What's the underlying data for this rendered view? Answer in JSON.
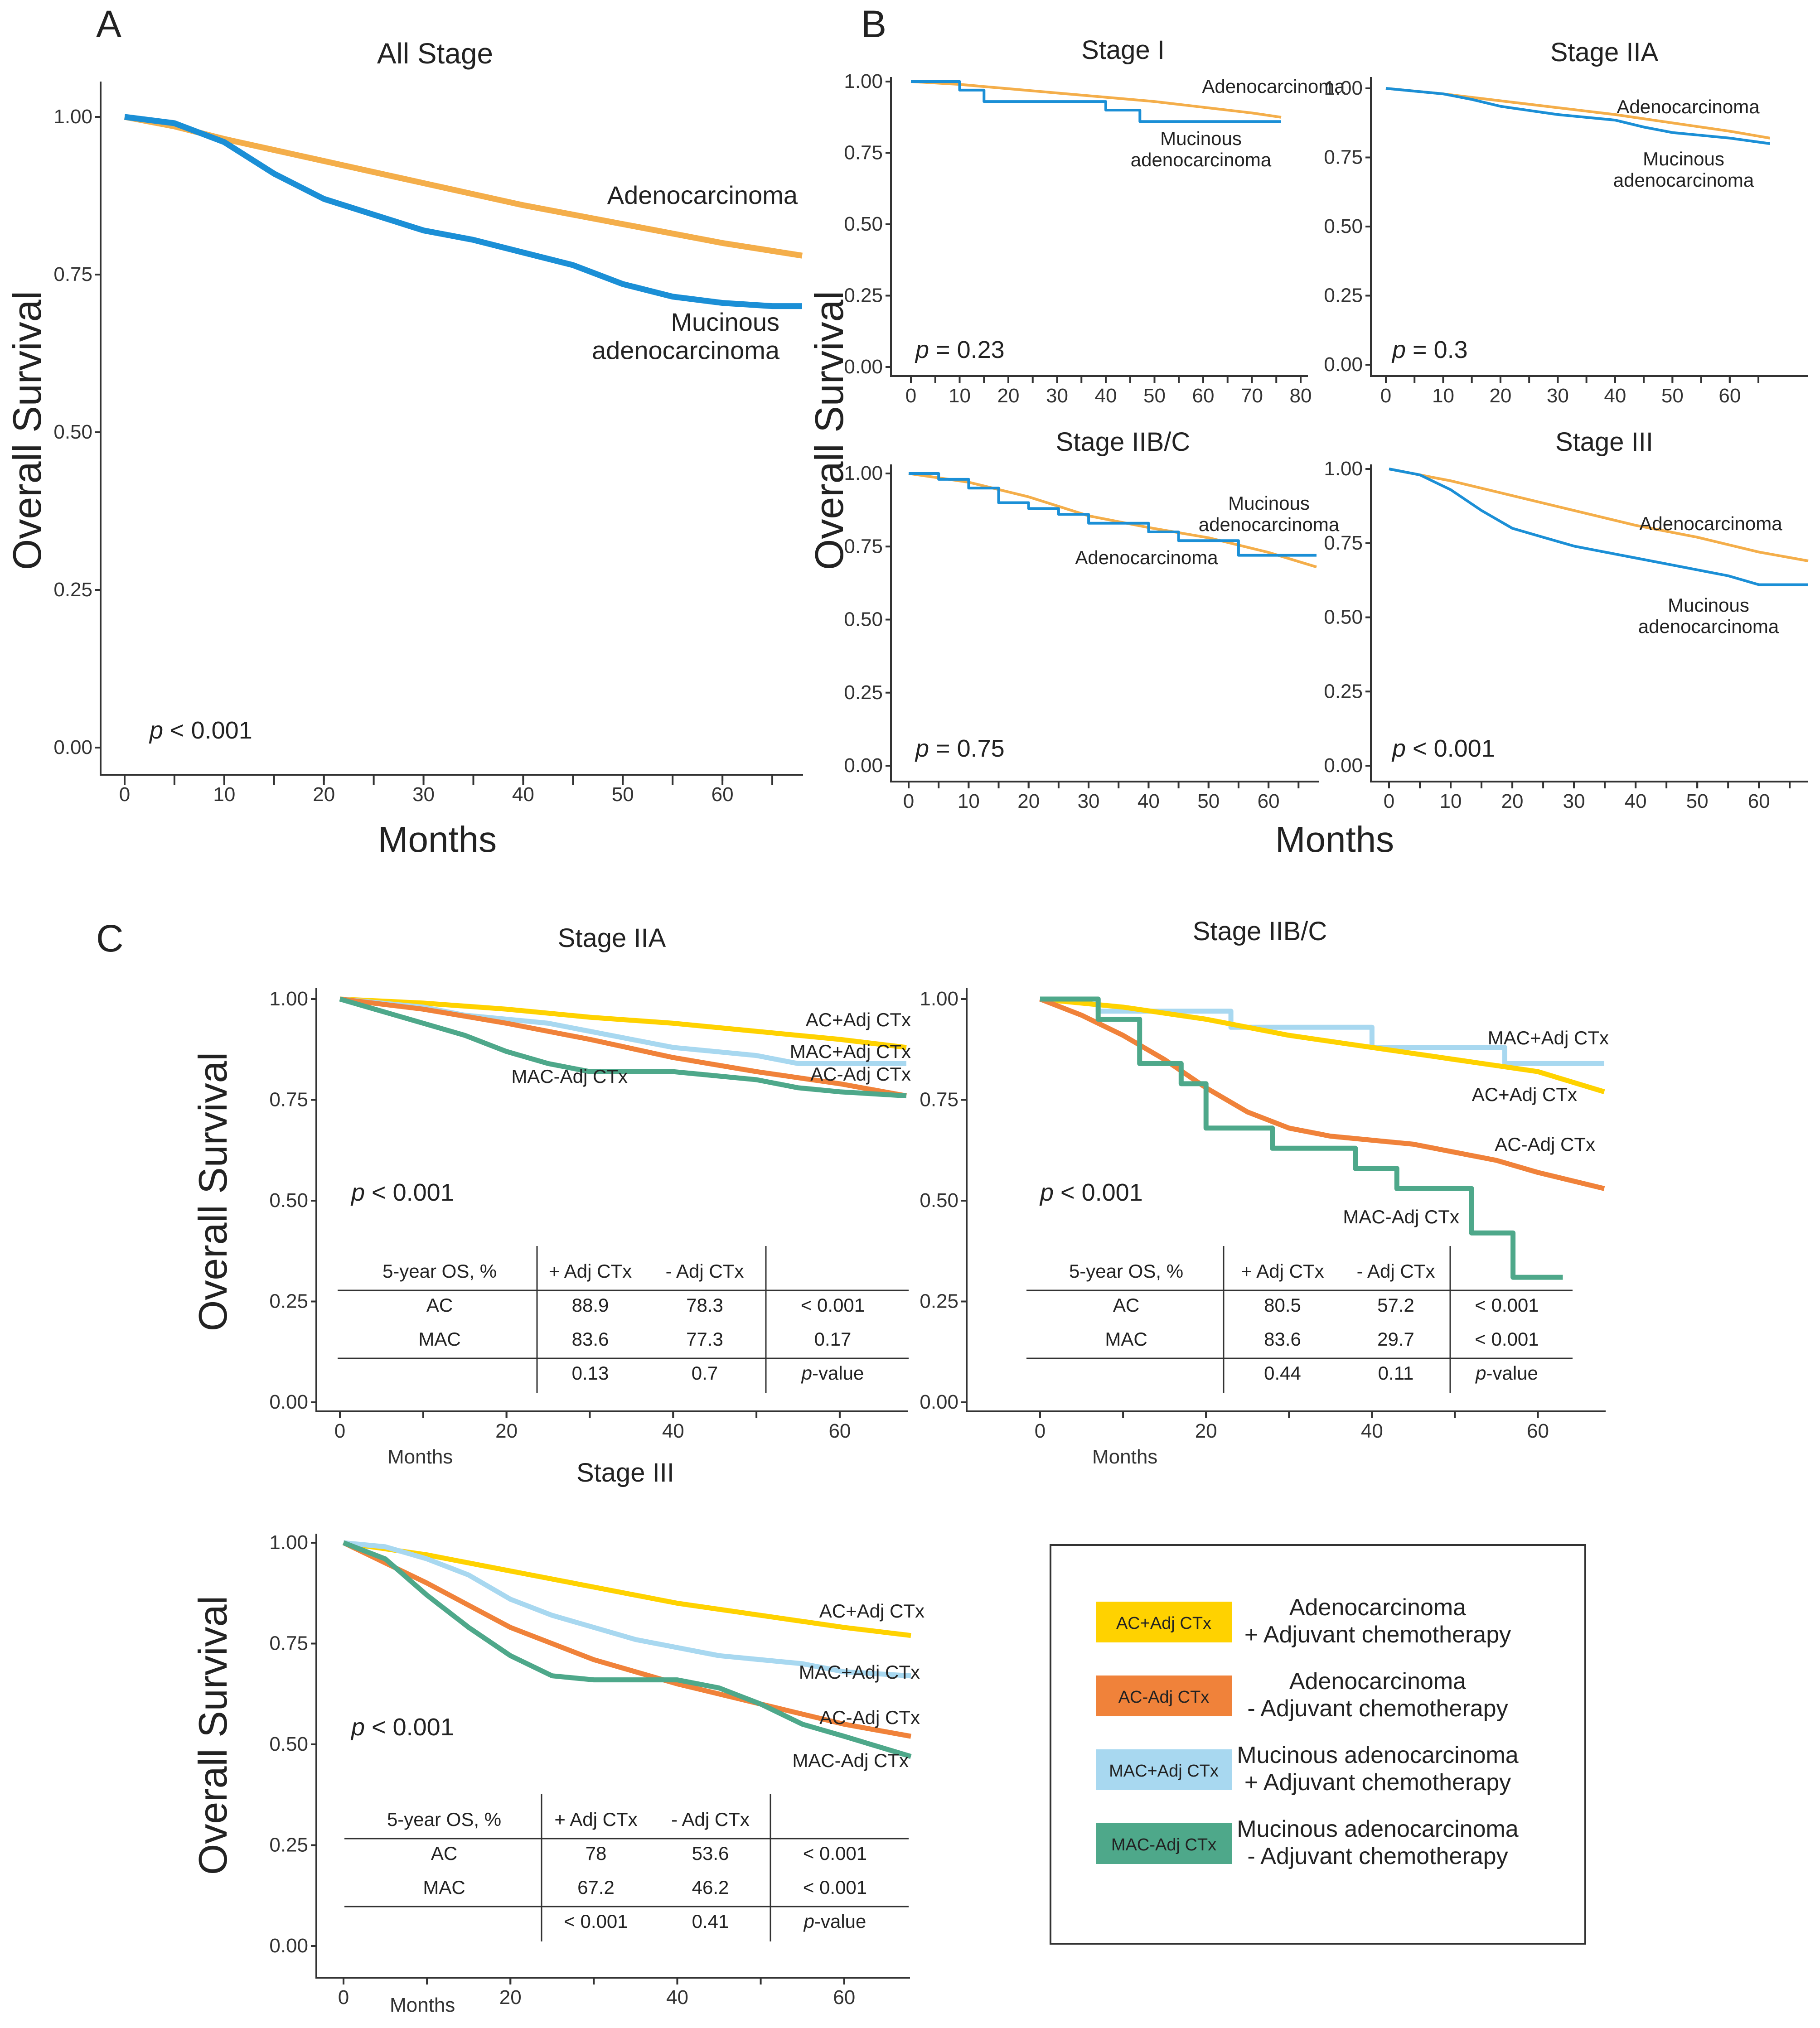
{
  "panel_labels": {
    "a": "A",
    "b": "B",
    "c": "C"
  },
  "chart_data": [
    {
      "id": "A",
      "type": "line",
      "title": "All Stage",
      "xlabel": "Months",
      "ylabel": "Overall Survival",
      "xlim": [
        0,
        68
      ],
      "ylim": [
        0,
        1
      ],
      "xticks": [
        "0",
        "10",
        "20",
        "30",
        "40",
        "50",
        "60"
      ],
      "yticks": [
        "0.00",
        "0.25",
        "0.50",
        "0.75",
        "1.00"
      ],
      "p_label": "p < 0.001",
      "series": [
        {
          "name": "Adenocarcinoma",
          "color": "#f4ae4a",
          "label": "Adenocarcinoma",
          "x": [
            0,
            5,
            10,
            20,
            30,
            40,
            50,
            60,
            68
          ],
          "y": [
            1.0,
            0.985,
            0.965,
            0.93,
            0.895,
            0.86,
            0.83,
            0.8,
            0.78
          ]
        },
        {
          "name": "Mucinous adenocarcinoma",
          "color": "#1b8fd6",
          "label": "Mucinous\nadenocarcinoma",
          "x": [
            0,
            5,
            10,
            15,
            20,
            25,
            30,
            35,
            40,
            45,
            50,
            55,
            60,
            65,
            68
          ],
          "y": [
            1.0,
            0.99,
            0.96,
            0.91,
            0.87,
            0.845,
            0.82,
            0.805,
            0.785,
            0.765,
            0.735,
            0.715,
            0.705,
            0.7,
            0.7
          ]
        }
      ]
    },
    {
      "id": "B1",
      "type": "line",
      "title": "Stage I",
      "xlim": [
        0,
        80
      ],
      "ylim": [
        0,
        1
      ],
      "xticks": [
        "0",
        "10",
        "20",
        "30",
        "40",
        "50",
        "60",
        "70",
        "80"
      ],
      "yticks": [
        "0.00",
        "0.25",
        "0.50",
        "0.75",
        "1.00"
      ],
      "p_label": "p = 0.23",
      "series": [
        {
          "name": "Adenocarcinoma",
          "color": "#f4ae4a",
          "label": "Adenocarcinoma",
          "x": [
            0,
            10,
            20,
            30,
            40,
            50,
            60,
            70,
            76
          ],
          "y": [
            1.0,
            0.99,
            0.975,
            0.96,
            0.945,
            0.93,
            0.91,
            0.89,
            0.875
          ]
        },
        {
          "name": "Mucinous adenocarcinoma",
          "color": "#1b8fd6",
          "label": "Mucinous\nadenocarcinoma",
          "x": [
            0,
            10,
            10,
            15,
            15,
            40,
            40,
            47,
            47,
            76
          ],
          "y": [
            1.0,
            1.0,
            0.97,
            0.97,
            0.93,
            0.93,
            0.9,
            0.9,
            0.86,
            0.86
          ]
        }
      ]
    },
    {
      "id": "B2",
      "type": "line",
      "title": "Stage IIA",
      "xlim": [
        0,
        68
      ],
      "ylim": [
        0,
        1
      ],
      "xticks": [
        "0",
        "10",
        "20",
        "30",
        "40",
        "50",
        "60"
      ],
      "yticks": [
        "0.00",
        "0.25",
        "0.50",
        "0.75",
        "1.00"
      ],
      "p_label": "p = 0.3",
      "series": [
        {
          "name": "Adenocarcinoma",
          "color": "#f4ae4a",
          "label": "Adenocarcinoma",
          "x": [
            0,
            10,
            20,
            30,
            40,
            50,
            60,
            67
          ],
          "y": [
            1.0,
            0.98,
            0.955,
            0.93,
            0.905,
            0.875,
            0.845,
            0.82
          ]
        },
        {
          "name": "Mucinous adenocarcinoma",
          "color": "#1b8fd6",
          "label": "Mucinous\nadenocarcinoma",
          "x": [
            0,
            5,
            10,
            15,
            20,
            25,
            30,
            35,
            40,
            45,
            50,
            55,
            60,
            67
          ],
          "y": [
            1.0,
            0.99,
            0.98,
            0.96,
            0.935,
            0.92,
            0.905,
            0.895,
            0.885,
            0.86,
            0.84,
            0.83,
            0.82,
            0.8
          ]
        }
      ]
    },
    {
      "id": "B3",
      "type": "line",
      "title": "Stage IIB/C",
      "xlim": [
        0,
        68
      ],
      "ylim": [
        0,
        1
      ],
      "xticks": [
        "0",
        "10",
        "20",
        "30",
        "40",
        "50",
        "60"
      ],
      "yticks": [
        "0.00",
        "0.25",
        "0.50",
        "0.75",
        "1.00"
      ],
      "p_label": "p = 0.75",
      "series": [
        {
          "name": "Adenocarcinoma",
          "color": "#f4ae4a",
          "label": "Adenocarcinoma",
          "x": [
            0,
            10,
            20,
            30,
            40,
            50,
            60,
            68
          ],
          "y": [
            1.0,
            0.97,
            0.92,
            0.855,
            0.815,
            0.78,
            0.73,
            0.68
          ]
        },
        {
          "name": "Mucinous adenocarcinoma",
          "color": "#1b8fd6",
          "label": "Mucinous\nadenocarcinoma",
          "x": [
            0,
            5,
            5,
            10,
            10,
            15,
            15,
            20,
            20,
            25,
            25,
            30,
            30,
            40,
            40,
            45,
            45,
            55,
            55,
            68
          ],
          "y": [
            1.0,
            1.0,
            0.98,
            0.98,
            0.95,
            0.95,
            0.9,
            0.9,
            0.88,
            0.88,
            0.86,
            0.86,
            0.83,
            0.83,
            0.8,
            0.8,
            0.77,
            0.77,
            0.72,
            0.72
          ]
        }
      ]
    },
    {
      "id": "B4",
      "type": "line",
      "title": "Stage III",
      "xlim": [
        0,
        68
      ],
      "ylim": [
        0,
        1
      ],
      "xticks": [
        "0",
        "10",
        "20",
        "30",
        "40",
        "50",
        "60"
      ],
      "yticks": [
        "0.00",
        "0.25",
        "0.50",
        "0.75",
        "1.00"
      ],
      "p_label": "p < 0.001",
      "series": [
        {
          "name": "Adenocarcinoma",
          "color": "#f4ae4a",
          "label": "Adenocarcinoma",
          "x": [
            0,
            10,
            20,
            30,
            40,
            50,
            60,
            68
          ],
          "y": [
            1.0,
            0.96,
            0.91,
            0.86,
            0.81,
            0.77,
            0.72,
            0.69
          ]
        },
        {
          "name": "Mucinous adenocarcinoma",
          "color": "#1b8fd6",
          "label": "Mucinous\nadenocarcinoma",
          "x": [
            0,
            5,
            10,
            15,
            20,
            25,
            30,
            35,
            40,
            45,
            50,
            55,
            60,
            68
          ],
          "y": [
            1.0,
            0.98,
            0.93,
            0.86,
            0.8,
            0.77,
            0.74,
            0.72,
            0.7,
            0.68,
            0.66,
            0.64,
            0.61,
            0.61
          ]
        }
      ]
    },
    {
      "id": "C1",
      "type": "line",
      "title": "Stage IIA",
      "xlabel": "Months",
      "ylabel": "Overall Survival",
      "xlim": [
        0,
        68
      ],
      "ylim": [
        0,
        1
      ],
      "xticks": [
        "0",
        "20",
        "40",
        "60"
      ],
      "yticks": [
        "0.00",
        "0.25",
        "0.50",
        "0.75",
        "1.00"
      ],
      "p_label": "p < 0.001",
      "series": [
        {
          "name": "AC+Adj CTx",
          "color": "#ffd200",
          "label": "AC+Adj CTx",
          "x": [
            0,
            10,
            20,
            30,
            40,
            50,
            60,
            68
          ],
          "y": [
            1.0,
            0.99,
            0.975,
            0.955,
            0.94,
            0.92,
            0.9,
            0.88
          ]
        },
        {
          "name": "MAC+Adj CTx",
          "color": "#a8d8f0",
          "label": "MAC+Adj CTx",
          "x": [
            0,
            5,
            10,
            15,
            20,
            25,
            30,
            35,
            40,
            45,
            50,
            55,
            60,
            68
          ],
          "y": [
            1.0,
            0.99,
            0.98,
            0.96,
            0.95,
            0.94,
            0.92,
            0.9,
            0.88,
            0.87,
            0.86,
            0.84,
            0.84,
            0.84
          ]
        },
        {
          "name": "AC-Adj CTx",
          "color": "#f0823a",
          "label": "AC-Adj CTx",
          "x": [
            0,
            10,
            20,
            30,
            40,
            50,
            60,
            68
          ],
          "y": [
            1.0,
            0.975,
            0.94,
            0.9,
            0.855,
            0.82,
            0.79,
            0.76
          ]
        },
        {
          "name": "MAC-Adj CTx",
          "color": "#4ea88a",
          "label": "MAC-Adj CTx",
          "x": [
            0,
            5,
            10,
            15,
            20,
            25,
            30,
            35,
            40,
            45,
            50,
            55,
            60,
            68
          ],
          "y": [
            1.0,
            0.97,
            0.94,
            0.91,
            0.87,
            0.84,
            0.82,
            0.82,
            0.82,
            0.81,
            0.8,
            0.78,
            0.77,
            0.76
          ]
        }
      ],
      "table": {
        "headers": [
          "5-year OS, %",
          "+ Adj CTx",
          "- Adj CTx",
          ""
        ],
        "rows": [
          [
            "AC",
            "88.9",
            "78.3",
            "< 0.001"
          ],
          [
            "MAC",
            "83.6",
            "77.3",
            "0.17"
          ],
          [
            "",
            "0.13",
            "0.7",
            "p-value"
          ]
        ]
      }
    },
    {
      "id": "C2",
      "type": "line",
      "title": "Stage IIB/C",
      "xlabel": "Months",
      "xlim": [
        0,
        68
      ],
      "ylim": [
        0,
        1
      ],
      "xticks": [
        "0",
        "20",
        "40",
        "60"
      ],
      "yticks": [
        "0.00",
        "0.25",
        "0.50",
        "0.75",
        "1.00"
      ],
      "p_label": "p < 0.001",
      "series": [
        {
          "name": "MAC+Adj CTx",
          "color": "#a8d8f0",
          "label": "MAC+Adj CTx",
          "x": [
            0,
            7,
            7,
            23,
            23,
            40,
            40,
            56,
            56,
            68
          ],
          "y": [
            1.0,
            1.0,
            0.97,
            0.97,
            0.93,
            0.93,
            0.88,
            0.88,
            0.84,
            0.84
          ]
        },
        {
          "name": "AC+Adj CTx",
          "color": "#ffd200",
          "label": "AC+Adj CTx",
          "x": [
            0,
            10,
            20,
            30,
            40,
            50,
            60,
            68
          ],
          "y": [
            1.0,
            0.98,
            0.95,
            0.91,
            0.88,
            0.85,
            0.82,
            0.77
          ]
        },
        {
          "name": "AC-Adj CTx",
          "color": "#f0823a",
          "label": "AC-Adj CTx",
          "x": [
            0,
            5,
            10,
            15,
            20,
            25,
            30,
            35,
            40,
            45,
            50,
            55,
            60,
            68
          ],
          "y": [
            1.0,
            0.96,
            0.91,
            0.85,
            0.78,
            0.72,
            0.68,
            0.66,
            0.65,
            0.64,
            0.62,
            0.6,
            0.57,
            0.53
          ]
        },
        {
          "name": "MAC-Adj CTx",
          "color": "#4ea88a",
          "label": "MAC-Adj CTx",
          "x": [
            0,
            7,
            7,
            12,
            12,
            17,
            17,
            20,
            20,
            28,
            28,
            38,
            38,
            43,
            43,
            52,
            52,
            57,
            57,
            63
          ],
          "y": [
            1.0,
            1.0,
            0.95,
            0.95,
            0.84,
            0.84,
            0.79,
            0.79,
            0.68,
            0.68,
            0.63,
            0.63,
            0.58,
            0.58,
            0.53,
            0.53,
            0.42,
            0.42,
            0.31,
            0.31
          ]
        }
      ],
      "table": {
        "headers": [
          "5-year OS, %",
          "+ Adj CTx",
          "- Adj CTx",
          ""
        ],
        "rows": [
          [
            "AC",
            "80.5",
            "57.2",
            "< 0.001"
          ],
          [
            "MAC",
            "83.6",
            "29.7",
            "< 0.001"
          ],
          [
            "",
            "0.44",
            "0.11",
            "p-value"
          ]
        ]
      }
    },
    {
      "id": "C3",
      "type": "line",
      "title": "Stage III",
      "xlabel": "Months",
      "ylabel": "Overall Survival",
      "xlim": [
        0,
        68
      ],
      "ylim": [
        0,
        1
      ],
      "xticks": [
        "0",
        "20",
        "40",
        "60"
      ],
      "yticks": [
        "0.00",
        "0.25",
        "0.50",
        "0.75",
        "1.00"
      ],
      "p_label": "p < 0.001",
      "series": [
        {
          "name": "AC+Adj CTx",
          "color": "#ffd200",
          "label": "AC+Adj CTx",
          "x": [
            0,
            10,
            20,
            30,
            40,
            50,
            60,
            68
          ],
          "y": [
            1.0,
            0.97,
            0.93,
            0.89,
            0.85,
            0.82,
            0.79,
            0.77
          ]
        },
        {
          "name": "MAC+Adj CTx",
          "color": "#a8d8f0",
          "label": "MAC+Adj CTx",
          "x": [
            0,
            5,
            10,
            15,
            20,
            25,
            30,
            35,
            40,
            45,
            50,
            55,
            60,
            68
          ],
          "y": [
            1.0,
            0.99,
            0.96,
            0.92,
            0.86,
            0.82,
            0.79,
            0.76,
            0.74,
            0.72,
            0.71,
            0.7,
            0.68,
            0.67
          ]
        },
        {
          "name": "AC-Adj CTx",
          "color": "#f0823a",
          "label": "AC-Adj CTx",
          "x": [
            0,
            10,
            20,
            30,
            40,
            50,
            60,
            68
          ],
          "y": [
            1.0,
            0.9,
            0.79,
            0.71,
            0.65,
            0.6,
            0.55,
            0.52
          ]
        },
        {
          "name": "MAC-Adj CTx",
          "color": "#4ea88a",
          "label": "MAC-Adj CTx",
          "x": [
            0,
            5,
            10,
            15,
            20,
            25,
            30,
            35,
            40,
            45,
            50,
            55,
            60,
            68
          ],
          "y": [
            1.0,
            0.96,
            0.87,
            0.79,
            0.72,
            0.67,
            0.66,
            0.66,
            0.66,
            0.64,
            0.6,
            0.55,
            0.52,
            0.47
          ]
        }
      ],
      "table": {
        "headers": [
          "5-year OS, %",
          "+ Adj CTx",
          "- Adj CTx",
          ""
        ],
        "rows": [
          [
            "AC",
            "78",
            "53.6",
            "< 0.001"
          ],
          [
            "MAC",
            "67.2",
            "46.2",
            "< 0.001"
          ],
          [
            "",
            "< 0.001",
            "0.41",
            "p-value"
          ]
        ]
      }
    }
  ],
  "legend": [
    {
      "swatch": "AC+Adj CTx",
      "color": "#ffd200",
      "line1": "Adenocarcinoma",
      "line2": "+ Adjuvant chemotherapy"
    },
    {
      "swatch": "AC-Adj CTx",
      "color": "#f0823a",
      "line1": "Adenocarcinoma",
      "line2": "- Adjuvant chemotherapy"
    },
    {
      "swatch": "MAC+Adj CTx",
      "color": "#a8d8f0",
      "line1": "Mucinous adenocarcinoma",
      "line2": "+ Adjuvant chemotherapy"
    },
    {
      "swatch": "MAC-Adj CTx",
      "color": "#4ea88a",
      "line1": "Mucinous adenocarcinoma",
      "line2": "- Adjuvant chemotherapy"
    }
  ]
}
